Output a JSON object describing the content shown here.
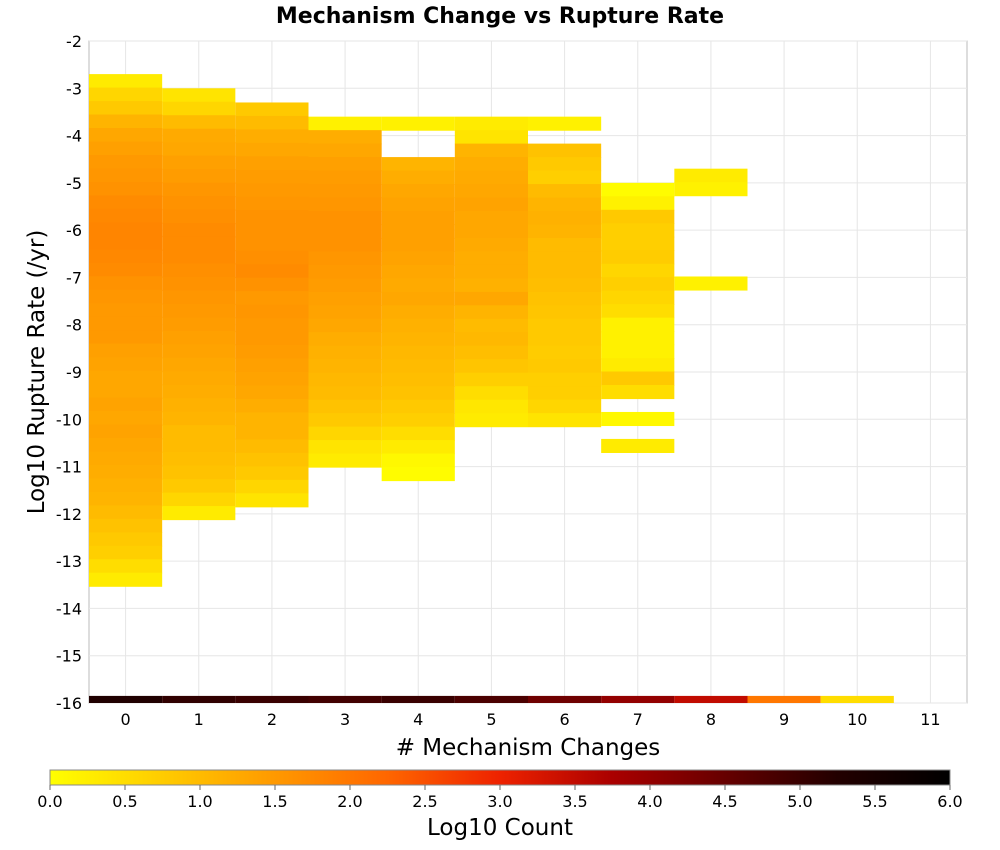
{
  "chart_data": {
    "type": "heatmap",
    "title": "Mechanism Change vs Rupture Rate",
    "xlabel": "# Mechanism Changes",
    "ylabel": "Log10 Rupture Rate (/yr)",
    "colorbar_label": "Log10 Count",
    "xlim": [
      -0.5,
      11.5
    ],
    "ylim": [
      -16,
      -2
    ],
    "x_ticks": [
      "0",
      "1",
      "2",
      "3",
      "4",
      "5",
      "6",
      "7",
      "8",
      "9",
      "10",
      "11"
    ],
    "y_ticks": [
      "-2",
      "-3",
      "-4",
      "-5",
      "-6",
      "-7",
      "-8",
      "-9",
      "-10",
      "-11",
      "-12",
      "-13",
      "-14",
      "-15",
      "-16"
    ],
    "color_range": [
      0.0,
      6.0
    ],
    "colorbar_ticks": [
      "0.0",
      "0.5",
      "1.0",
      "1.5",
      "2.0",
      "2.5",
      "3.0",
      "3.5",
      "4.0",
      "4.5",
      "5.0",
      "5.5",
      "6.0"
    ],
    "colorscale": [
      "#ffff00",
      "#ffcc00",
      "#ff9900",
      "#ff6600",
      "#ee2200",
      "#aa0000",
      "#660000",
      "#220000",
      "#000000"
    ],
    "grid": true,
    "legend": "bottom",
    "bin_height": 0.285,
    "columns": [
      {
        "x": 0,
        "y_top": -2.7,
        "values": [
          0.3,
          0.6,
          0.8,
          1.1,
          1.3,
          1.4,
          1.5,
          1.55,
          1.6,
          1.7,
          1.75,
          1.8,
          1.8,
          1.75,
          1.7,
          1.6,
          1.55,
          1.5,
          1.5,
          1.5,
          1.4,
          1.35,
          1.3,
          1.3,
          1.35,
          1.3,
          1.35,
          1.3,
          1.25,
          1.2,
          1.15,
          1.1,
          1.0,
          0.9,
          0.8,
          0.7,
          0.5,
          0.3
        ]
      },
      {
        "x": 1,
        "y_top": -3.0,
        "values": [
          0.4,
          0.6,
          1.0,
          1.25,
          1.3,
          1.4,
          1.45,
          1.55,
          1.6,
          1.65,
          1.7,
          1.7,
          1.7,
          1.65,
          1.6,
          1.55,
          1.5,
          1.45,
          1.4,
          1.35,
          1.3,
          1.25,
          1.2,
          1.15,
          1.1,
          1.0,
          1.0,
          0.95,
          0.9,
          0.8,
          0.6,
          0.3
        ]
      },
      {
        "x": 2,
        "y_top": -3.3,
        "values": [
          0.8,
          1.0,
          1.2,
          1.3,
          1.4,
          1.45,
          1.5,
          1.55,
          1.6,
          1.6,
          1.6,
          1.65,
          1.7,
          1.6,
          1.5,
          1.55,
          1.5,
          1.5,
          1.45,
          1.4,
          1.35,
          1.3,
          1.2,
          1.1,
          1.1,
          1.0,
          0.9,
          0.8,
          0.6,
          0.4
        ]
      },
      {
        "x": 3,
        "y_top": -3.6,
        "values": [
          0.2,
          1.2,
          1.3,
          1.4,
          1.45,
          1.5,
          1.55,
          1.6,
          1.6,
          1.6,
          1.55,
          1.5,
          1.45,
          1.4,
          1.35,
          1.3,
          1.2,
          1.15,
          1.1,
          1.05,
          1.0,
          0.9,
          0.8,
          0.6,
          0.4,
          0.3
        ]
      },
      {
        "x": 4,
        "y_top": -3.6,
        "values": [
          0.2,
          null,
          null,
          1.1,
          1.2,
          1.3,
          1.35,
          1.4,
          1.4,
          1.4,
          1.35,
          1.3,
          1.25,
          1.3,
          1.2,
          1.15,
          1.1,
          1.05,
          1.0,
          0.95,
          0.9,
          0.8,
          0.7,
          0.5,
          0.3,
          0.1,
          0.05
        ]
      },
      {
        "x": 5,
        "y_top": -3.6,
        "values": [
          0.3,
          0.4,
          1.1,
          1.2,
          1.25,
          1.3,
          1.35,
          1.3,
          1.3,
          1.25,
          1.2,
          1.2,
          1.15,
          1.3,
          1.1,
          1.0,
          1.05,
          0.95,
          0.85,
          0.7,
          0.5,
          0.35,
          0.3
        ]
      },
      {
        "x": 6,
        "y_top": -3.6,
        "values": [
          0.2,
          null,
          0.9,
          0.8,
          0.7,
          1.0,
          1.1,
          1.15,
          1.1,
          1.0,
          1.0,
          1.0,
          0.95,
          0.9,
          0.85,
          0.8,
          0.8,
          0.75,
          0.8,
          0.7,
          0.7,
          0.6,
          0.4
        ]
      },
      {
        "x": 7,
        "y_top": -5.0,
        "values": [
          0.05,
          0.2,
          0.8,
          0.7,
          0.7,
          0.75,
          0.6,
          0.7,
          0.6,
          0.5,
          0.2,
          0.2,
          0.2,
          0.3,
          0.8,
          0.5,
          null,
          0.1,
          null,
          0.3
        ]
      },
      {
        "x": 8,
        "y_top": -4.7,
        "values": [
          0.3,
          0.2,
          null,
          null,
          null,
          null,
          null,
          null,
          0.2
        ]
      }
    ],
    "bottom_row": {
      "y": -16,
      "values": [
        5.3,
        5.1,
        5.0,
        4.9,
        5.0,
        4.8,
        4.4,
        4.0,
        3.5,
        2.0,
        0.5,
        null
      ]
    }
  }
}
